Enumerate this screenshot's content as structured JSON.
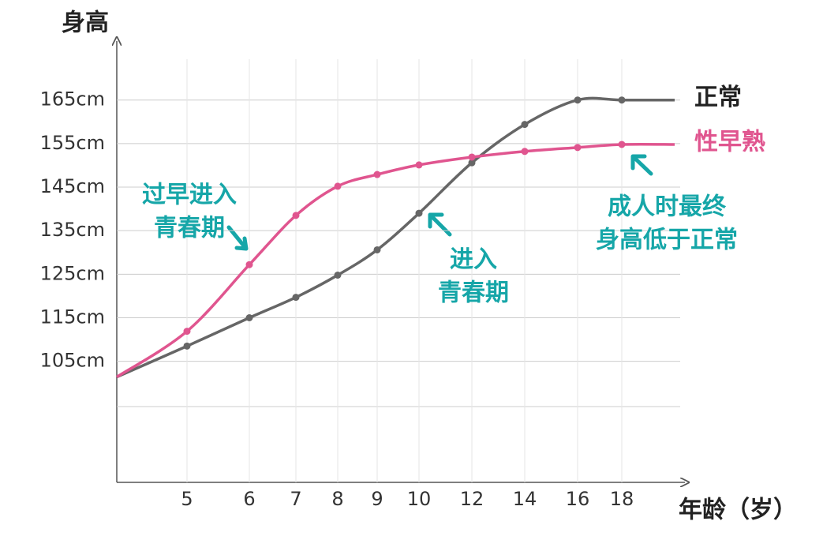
{
  "chart_data": {
    "type": "line",
    "y_label": "身高",
    "x_label": "年龄（岁）",
    "categories": [
      null,
      5,
      6,
      7,
      8,
      9,
      10,
      12,
      14,
      16,
      18,
      null
    ],
    "series": [
      {
        "name": "正常",
        "color": "#666666",
        "label_color": "#222222",
        "values": [
          101.4,
          108.5,
          115,
          119.7,
          124.8,
          130.6,
          139,
          150.6,
          159.4,
          165,
          165,
          165
        ]
      },
      {
        "name": "性早熟",
        "color": "#e0558f",
        "label_color": "#e0558f",
        "values": [
          101.4,
          111.9,
          127.2,
          138.5,
          145.2,
          147.9,
          150.1,
          151.9,
          153.2,
          154.1,
          154.8,
          154.8
        ]
      }
    ],
    "ylim": [
      77.2,
      178
    ],
    "yticks": [
      {
        "value": 105,
        "label": "105cm"
      },
      {
        "value": 115,
        "label": "115cm"
      },
      {
        "value": 125,
        "label": "125cm"
      },
      {
        "value": 135,
        "label": "135cm"
      },
      {
        "value": 145,
        "label": "145cm"
      },
      {
        "value": 155,
        "label": "155cm"
      },
      {
        "value": 165,
        "label": "165cm"
      }
    ],
    "grid": true,
    "annotations": [
      [
        "过早进入",
        "青春期"
      ],
      [
        "进入",
        "青春期"
      ],
      [
        "成人时最终",
        "身高低于正常"
      ]
    ],
    "annotation_color": "#16a6a8"
  }
}
